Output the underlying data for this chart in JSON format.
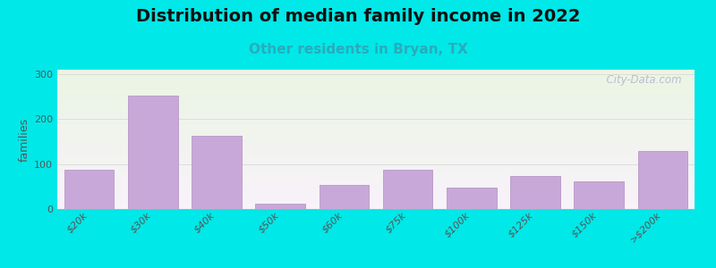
{
  "title": "Distribution of median family income in 2022",
  "subtitle": "Other residents in Bryan, TX",
  "ylabel": "families",
  "categories": [
    "$20k",
    "$30k",
    "$40k",
    "$50k",
    "$60k",
    "$75k",
    "$100k",
    "$125k",
    "$150k",
    ">$200k"
  ],
  "values": [
    88,
    253,
    163,
    12,
    53,
    88,
    48,
    73,
    62,
    130
  ],
  "bar_color": "#c8a8d8",
  "bar_edge_color": "#b898c8",
  "background_outer": "#00e8e8",
  "background_plot_top": "#eaf5e2",
  "background_plot_bottom": "#f8f2fa",
  "ylim": [
    0,
    310
  ],
  "yticks": [
    0,
    100,
    200,
    300
  ],
  "title_fontsize": 14,
  "subtitle_fontsize": 11,
  "subtitle_color": "#2aabbb",
  "ylabel_fontsize": 9,
  "tick_fontsize": 8,
  "watermark_text": "  City-Data.com",
  "grid_color": "#dddddd",
  "title_fontweight": "bold",
  "title_color": "#111111"
}
